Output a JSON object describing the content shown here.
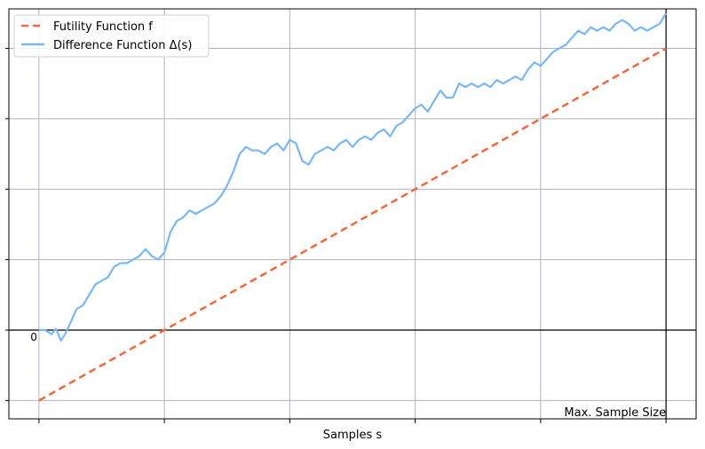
{
  "chart_data": {
    "type": "line",
    "title": "",
    "xlabel": "Samples s",
    "ylabel": "",
    "xlim": [
      -0.048,
      1.048
    ],
    "ylim": [
      -1.26,
      4.56
    ],
    "grid": true,
    "legend": "top-left",
    "x_tick_positions": [
      0,
      0.2,
      0.4,
      0.6,
      0.8,
      1.0
    ],
    "y_tick_positions": [
      -1,
      0,
      1,
      2,
      3,
      4
    ],
    "zero_label": "0",
    "max_sample_label": "Max. Sample Size",
    "series": [
      {
        "name": "Futility Function f",
        "style": "dashed",
        "color": "#f4683c",
        "x": [
          0,
          1
        ],
        "y": [
          -1,
          4
        ]
      },
      {
        "name": "Difference Function Δ(s)",
        "style": "solid",
        "color": "#7ab8f5",
        "x": [
          0,
          0.01,
          0.02,
          0.027,
          0.035,
          0.042,
          0.05,
          0.06,
          0.07,
          0.08,
          0.09,
          0.1,
          0.11,
          0.12,
          0.13,
          0.14,
          0.15,
          0.16,
          0.17,
          0.18,
          0.19,
          0.2,
          0.21,
          0.22,
          0.23,
          0.24,
          0.25,
          0.26,
          0.27,
          0.28,
          0.29,
          0.3,
          0.31,
          0.32,
          0.33,
          0.34,
          0.35,
          0.36,
          0.37,
          0.38,
          0.39,
          0.4,
          0.41,
          0.42,
          0.43,
          0.44,
          0.45,
          0.46,
          0.47,
          0.48,
          0.49,
          0.5,
          0.51,
          0.52,
          0.53,
          0.54,
          0.55,
          0.56,
          0.57,
          0.58,
          0.59,
          0.6,
          0.61,
          0.62,
          0.63,
          0.64,
          0.65,
          0.66,
          0.67,
          0.68,
          0.69,
          0.7,
          0.71,
          0.72,
          0.73,
          0.74,
          0.75,
          0.76,
          0.77,
          0.78,
          0.79,
          0.8,
          0.81,
          0.82,
          0.83,
          0.84,
          0.85,
          0.86,
          0.87,
          0.88,
          0.89,
          0.9,
          0.91,
          0.92,
          0.93,
          0.94,
          0.95,
          0.96,
          0.97,
          0.98,
          0.99,
          1.0
        ],
        "y": [
          0,
          0,
          -0.06,
          0.02,
          -0.15,
          -0.05,
          0.1,
          0.3,
          0.35,
          0.5,
          0.65,
          0.7,
          0.75,
          0.9,
          0.95,
          0.95,
          1.0,
          1.05,
          1.15,
          1.05,
          1.0,
          1.1,
          1.4,
          1.55,
          1.6,
          1.7,
          1.65,
          1.7,
          1.75,
          1.8,
          1.9,
          2.05,
          2.25,
          2.5,
          2.6,
          2.55,
          2.55,
          2.5,
          2.6,
          2.65,
          2.55,
          2.7,
          2.65,
          2.4,
          2.35,
          2.5,
          2.55,
          2.6,
          2.55,
          2.65,
          2.7,
          2.6,
          2.7,
          2.75,
          2.7,
          2.8,
          2.85,
          2.75,
          2.9,
          2.95,
          3.05,
          3.15,
          3.2,
          3.1,
          3.25,
          3.4,
          3.3,
          3.3,
          3.5,
          3.45,
          3.5,
          3.45,
          3.5,
          3.45,
          3.55,
          3.5,
          3.55,
          3.6,
          3.55,
          3.7,
          3.8,
          3.75,
          3.85,
          3.95,
          4.0,
          4.05,
          4.15,
          4.25,
          4.2,
          4.3,
          4.25,
          4.3,
          4.25,
          4.35,
          4.4,
          4.35,
          4.25,
          4.3,
          4.25,
          4.3,
          4.35,
          4.5
        ]
      }
    ]
  }
}
